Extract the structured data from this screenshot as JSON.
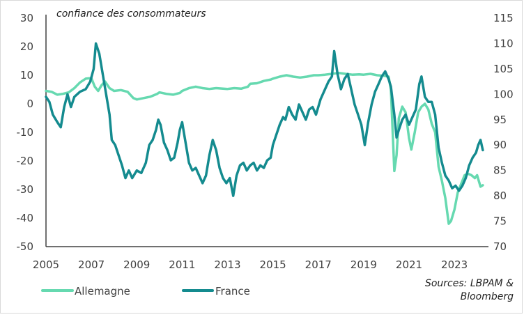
{
  "chart_data": {
    "type": "line",
    "title": "confiance des consommateurs",
    "source": [
      "Sources: LBPAM &",
      "Bloomberg"
    ],
    "x_ticks": [
      "2005",
      "2007",
      "2009",
      "2011",
      "2013",
      "2015",
      "2017",
      "2019",
      "2021",
      "2023"
    ],
    "xlim": [
      2005,
      2024.5
    ],
    "y_left": {
      "ticks": [
        "30",
        "20",
        "10",
        "0",
        "-10",
        "-20",
        "-30",
        "-40",
        "-50"
      ],
      "lim": [
        -50,
        30
      ]
    },
    "y_right": {
      "ticks": [
        "115",
        "110",
        "105",
        "100",
        "95",
        "90",
        "85",
        "80",
        "75",
        "70"
      ],
      "lim": [
        70,
        115
      ]
    },
    "grid": false,
    "legend_position": "bottom",
    "series": [
      {
        "name": "Allemagne",
        "axis": "left",
        "color": "#66d9b0",
        "points": [
          [
            2005.0,
            4.5
          ],
          [
            2005.25,
            4.2
          ],
          [
            2005.5,
            3.2
          ],
          [
            2005.75,
            3.5
          ],
          [
            2006.0,
            4.0
          ],
          [
            2006.25,
            5.5
          ],
          [
            2006.5,
            7.5
          ],
          [
            2006.75,
            8.8
          ],
          [
            2007.0,
            9.0
          ],
          [
            2007.15,
            6.0
          ],
          [
            2007.3,
            4.5
          ],
          [
            2007.45,
            6.5
          ],
          [
            2007.6,
            7.8
          ],
          [
            2007.8,
            5.5
          ],
          [
            2008.0,
            4.5
          ],
          [
            2008.3,
            4.8
          ],
          [
            2008.6,
            4.2
          ],
          [
            2008.85,
            2.0
          ],
          [
            2009.0,
            1.5
          ],
          [
            2009.3,
            2.0
          ],
          [
            2009.6,
            2.5
          ],
          [
            2009.9,
            3.5
          ],
          [
            2010.0,
            4.0
          ],
          [
            2010.3,
            3.5
          ],
          [
            2010.6,
            3.2
          ],
          [
            2010.9,
            3.8
          ],
          [
            2011.0,
            4.5
          ],
          [
            2011.3,
            5.5
          ],
          [
            2011.6,
            6.0
          ],
          [
            2011.9,
            5.5
          ],
          [
            2012.2,
            5.2
          ],
          [
            2012.5,
            5.5
          ],
          [
            2012.8,
            5.3
          ],
          [
            2013.0,
            5.2
          ],
          [
            2013.3,
            5.5
          ],
          [
            2013.6,
            5.3
          ],
          [
            2013.9,
            6.0
          ],
          [
            2014.0,
            7.0
          ],
          [
            2014.3,
            7.2
          ],
          [
            2014.6,
            8.0
          ],
          [
            2014.9,
            8.5
          ],
          [
            2015.0,
            8.8
          ],
          [
            2015.3,
            9.5
          ],
          [
            2015.6,
            10.0
          ],
          [
            2015.9,
            9.5
          ],
          [
            2016.2,
            9.2
          ],
          [
            2016.5,
            9.5
          ],
          [
            2016.8,
            10.0
          ],
          [
            2017.0,
            10.0
          ],
          [
            2017.3,
            10.2
          ],
          [
            2017.6,
            10.5
          ],
          [
            2017.9,
            10.8
          ],
          [
            2018.2,
            10.5
          ],
          [
            2018.5,
            10.2
          ],
          [
            2018.8,
            10.3
          ],
          [
            2019.0,
            10.2
          ],
          [
            2019.3,
            10.5
          ],
          [
            2019.6,
            10.0
          ],
          [
            2019.9,
            9.8
          ],
          [
            2020.1,
            9.5
          ],
          [
            2020.2,
            5.0
          ],
          [
            2020.35,
            -23.5
          ],
          [
            2020.45,
            -18.0
          ],
          [
            2020.55,
            -5.0
          ],
          [
            2020.7,
            -1.0
          ],
          [
            2020.85,
            -3.0
          ],
          [
            2021.0,
            -12.0
          ],
          [
            2021.1,
            -16.0
          ],
          [
            2021.25,
            -10.0
          ],
          [
            2021.4,
            -3.0
          ],
          [
            2021.55,
            -1.0
          ],
          [
            2021.7,
            0.0
          ],
          [
            2021.85,
            -2.0
          ],
          [
            2022.0,
            -7.0
          ],
          [
            2022.15,
            -10.0
          ],
          [
            2022.3,
            -22.0
          ],
          [
            2022.45,
            -27.0
          ],
          [
            2022.6,
            -33.0
          ],
          [
            2022.75,
            -42.0
          ],
          [
            2022.85,
            -41.0
          ],
          [
            2023.0,
            -37.0
          ],
          [
            2023.15,
            -31.0
          ],
          [
            2023.3,
            -28.0
          ],
          [
            2023.45,
            -25.0
          ],
          [
            2023.6,
            -24.5
          ],
          [
            2023.75,
            -25.0
          ],
          [
            2023.9,
            -26.0
          ],
          [
            2024.0,
            -25.0
          ],
          [
            2024.15,
            -29.0
          ],
          [
            2024.25,
            -28.5
          ]
        ]
      },
      {
        "name": "France",
        "axis": "right",
        "color": "#148b8f",
        "points": [
          [
            2005.0,
            99.5
          ],
          [
            2005.15,
            98.5
          ],
          [
            2005.3,
            96.0
          ],
          [
            2005.5,
            94.5
          ],
          [
            2005.65,
            93.5
          ],
          [
            2005.8,
            97.5
          ],
          [
            2005.95,
            100.0
          ],
          [
            2006.1,
            97.5
          ],
          [
            2006.25,
            99.5
          ],
          [
            2006.5,
            100.5
          ],
          [
            2006.75,
            101.0
          ],
          [
            2006.95,
            102.5
          ],
          [
            2007.1,
            105.0
          ],
          [
            2007.2,
            110.0
          ],
          [
            2007.35,
            108.0
          ],
          [
            2007.5,
            104.0
          ],
          [
            2007.65,
            100.0
          ],
          [
            2007.8,
            96.0
          ],
          [
            2007.9,
            91.0
          ],
          [
            2008.05,
            90.0
          ],
          [
            2008.2,
            88.0
          ],
          [
            2008.35,
            86.0
          ],
          [
            2008.5,
            83.5
          ],
          [
            2008.65,
            85.0
          ],
          [
            2008.8,
            83.5
          ],
          [
            2009.0,
            85.0
          ],
          [
            2009.2,
            84.5
          ],
          [
            2009.4,
            86.5
          ],
          [
            2009.55,
            90.0
          ],
          [
            2009.7,
            91.0
          ],
          [
            2009.85,
            93.0
          ],
          [
            2009.95,
            95.0
          ],
          [
            2010.05,
            94.0
          ],
          [
            2010.2,
            90.5
          ],
          [
            2010.35,
            89.0
          ],
          [
            2010.5,
            87.0
          ],
          [
            2010.65,
            87.5
          ],
          [
            2010.8,
            90.5
          ],
          [
            2010.9,
            93.0
          ],
          [
            2011.0,
            94.5
          ],
          [
            2011.15,
            90.5
          ],
          [
            2011.3,
            86.5
          ],
          [
            2011.45,
            85.0
          ],
          [
            2011.6,
            85.5
          ],
          [
            2011.75,
            84.0
          ],
          [
            2011.9,
            82.5
          ],
          [
            2012.05,
            84.0
          ],
          [
            2012.2,
            88.0
          ],
          [
            2012.35,
            91.0
          ],
          [
            2012.5,
            89.0
          ],
          [
            2012.65,
            85.5
          ],
          [
            2012.8,
            83.5
          ],
          [
            2012.95,
            82.5
          ],
          [
            2013.1,
            83.5
          ],
          [
            2013.25,
            80.0
          ],
          [
            2013.4,
            84.0
          ],
          [
            2013.55,
            86.0
          ],
          [
            2013.7,
            86.5
          ],
          [
            2013.85,
            85.0
          ],
          [
            2014.0,
            86.0
          ],
          [
            2014.15,
            86.5
          ],
          [
            2014.3,
            85.0
          ],
          [
            2014.45,
            86.0
          ],
          [
            2014.6,
            85.5
          ],
          [
            2014.75,
            87.0
          ],
          [
            2014.9,
            87.5
          ],
          [
            2015.0,
            90.0
          ],
          [
            2015.15,
            92.0
          ],
          [
            2015.3,
            94.0
          ],
          [
            2015.45,
            95.5
          ],
          [
            2015.55,
            95.0
          ],
          [
            2015.7,
            97.5
          ],
          [
            2015.85,
            96.0
          ],
          [
            2016.0,
            95.0
          ],
          [
            2016.15,
            98.0
          ],
          [
            2016.3,
            96.5
          ],
          [
            2016.45,
            95.0
          ],
          [
            2016.6,
            97.0
          ],
          [
            2016.75,
            97.5
          ],
          [
            2016.9,
            96.0
          ],
          [
            2017.1,
            99.0
          ],
          [
            2017.3,
            101.0
          ],
          [
            2017.45,
            102.5
          ],
          [
            2017.6,
            103.5
          ],
          [
            2017.7,
            108.5
          ],
          [
            2017.85,
            104.0
          ],
          [
            2018.0,
            101.0
          ],
          [
            2018.15,
            103.0
          ],
          [
            2018.3,
            104.0
          ],
          [
            2018.45,
            101.0
          ],
          [
            2018.6,
            98.0
          ],
          [
            2018.75,
            96.0
          ],
          [
            2018.9,
            94.0
          ],
          [
            2019.05,
            90.0
          ],
          [
            2019.2,
            94.5
          ],
          [
            2019.35,
            98.0
          ],
          [
            2019.5,
            100.5
          ],
          [
            2019.65,
            102.0
          ],
          [
            2019.8,
            103.5
          ],
          [
            2019.95,
            104.5
          ],
          [
            2020.1,
            103.0
          ],
          [
            2020.2,
            101.5
          ],
          [
            2020.35,
            96.0
          ],
          [
            2020.45,
            91.5
          ],
          [
            2020.55,
            93.0
          ],
          [
            2020.7,
            95.0
          ],
          [
            2020.85,
            96.0
          ],
          [
            2021.0,
            94.0
          ],
          [
            2021.15,
            95.5
          ],
          [
            2021.3,
            97.0
          ],
          [
            2021.45,
            102.0
          ],
          [
            2021.55,
            103.5
          ],
          [
            2021.7,
            99.5
          ],
          [
            2021.85,
            98.5
          ],
          [
            2022.0,
            98.5
          ],
          [
            2022.15,
            96.0
          ],
          [
            2022.3,
            89.5
          ],
          [
            2022.45,
            86.5
          ],
          [
            2022.6,
            84.0
          ],
          [
            2022.75,
            83.0
          ],
          [
            2022.9,
            81.5
          ],
          [
            2023.05,
            82.0
          ],
          [
            2023.2,
            81.0
          ],
          [
            2023.35,
            82.0
          ],
          [
            2023.5,
            83.5
          ],
          [
            2023.65,
            86.0
          ],
          [
            2023.8,
            87.5
          ],
          [
            2023.95,
            88.5
          ],
          [
            2024.05,
            90.0
          ],
          [
            2024.15,
            91.0
          ],
          [
            2024.25,
            89.0
          ]
        ]
      }
    ]
  }
}
